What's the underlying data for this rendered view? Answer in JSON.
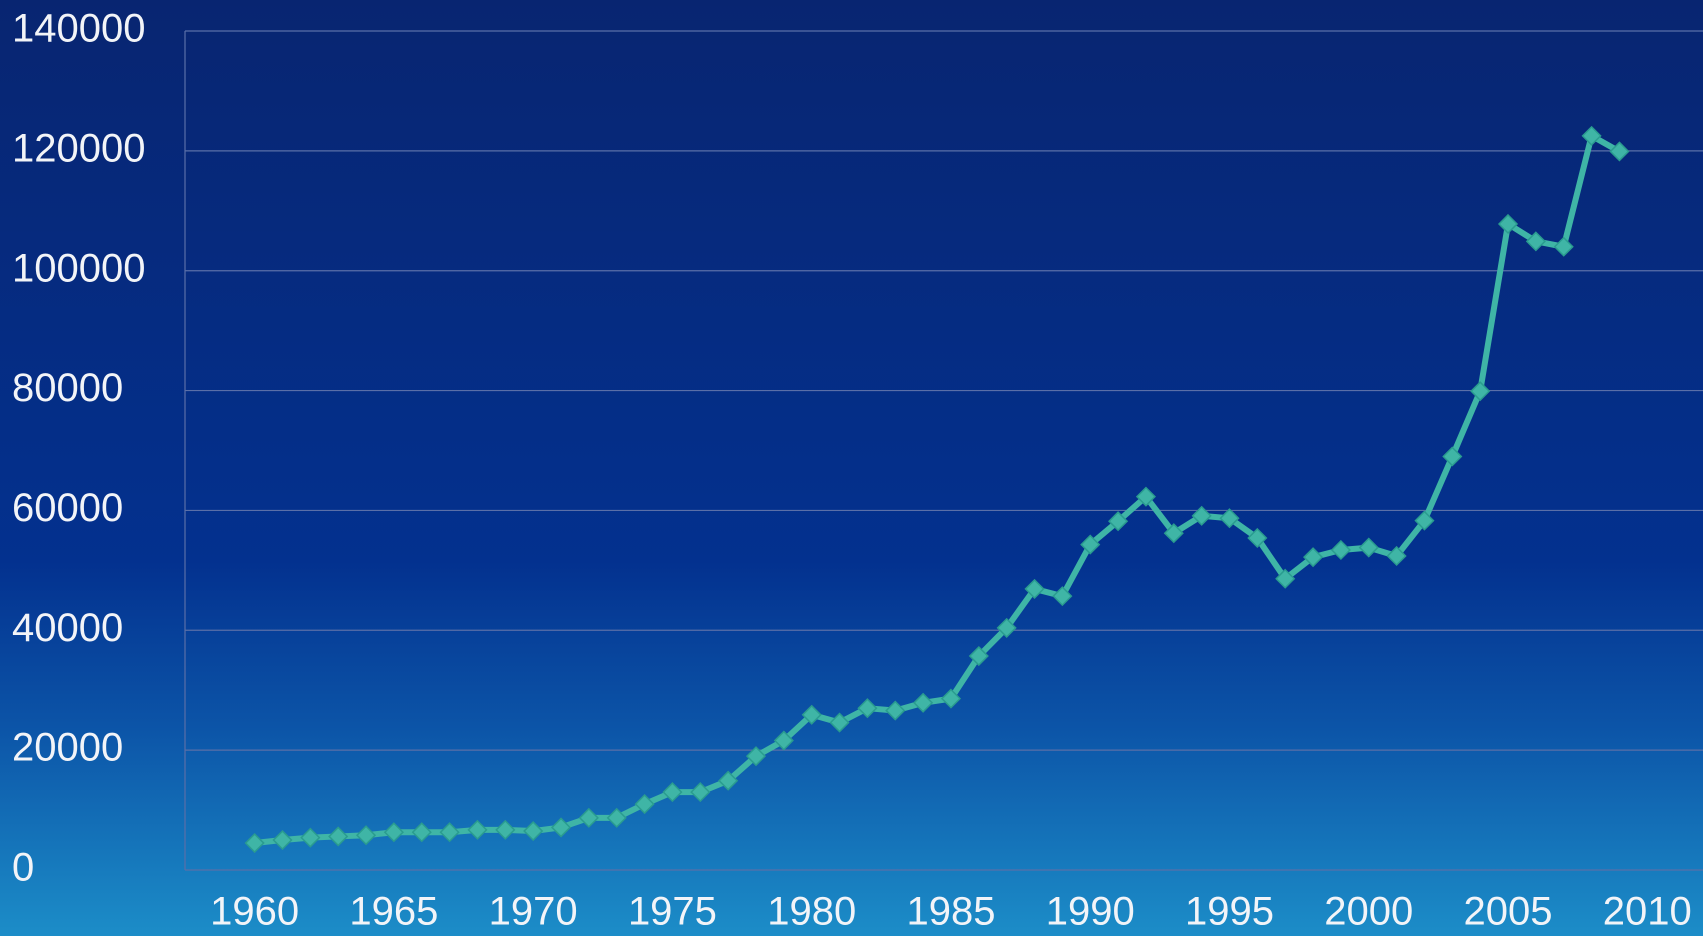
{
  "chart_data": {
    "type": "line",
    "x": [
      1960,
      1961,
      1962,
      1963,
      1964,
      1965,
      1966,
      1967,
      1968,
      1969,
      1970,
      1971,
      1972,
      1973,
      1974,
      1975,
      1976,
      1977,
      1978,
      1979,
      1980,
      1981,
      1982,
      1983,
      1984,
      1985,
      1986,
      1987,
      1988,
      1989,
      1990,
      1991,
      1992,
      1993,
      1994,
      1995,
      1996,
      1997,
      1998,
      1999,
      2000,
      2001,
      2002,
      2003,
      2004,
      2005,
      2006,
      2007,
      2008,
      2009
    ],
    "values": [
      4500,
      5000,
      5400,
      5600,
      5800,
      6300,
      6300,
      6300,
      6700,
      6700,
      6500,
      7100,
      8700,
      8700,
      11000,
      13000,
      13000,
      14900,
      19000,
      21600,
      25900,
      24600,
      27000,
      26600,
      27900,
      28600,
      35700,
      40400,
      46900,
      45700,
      54300,
      58200,
      62300,
      56200,
      59100,
      58700,
      55400,
      48600,
      52200,
      53400,
      53800,
      52400,
      58300,
      69000,
      79900,
      107800,
      104900,
      104000,
      122500,
      119900
    ],
    "color": "#3fb5a6",
    "xlim": [
      1957.5,
      2012
    ],
    "xticks": [
      1960,
      1965,
      1970,
      1975,
      1980,
      1985,
      1990,
      1995,
      2000,
      2005,
      2010
    ],
    "ylim": [
      0,
      140000
    ],
    "yticks": [
      0,
      20000,
      40000,
      60000,
      80000,
      100000,
      120000,
      140000
    ],
    "grid": true
  }
}
